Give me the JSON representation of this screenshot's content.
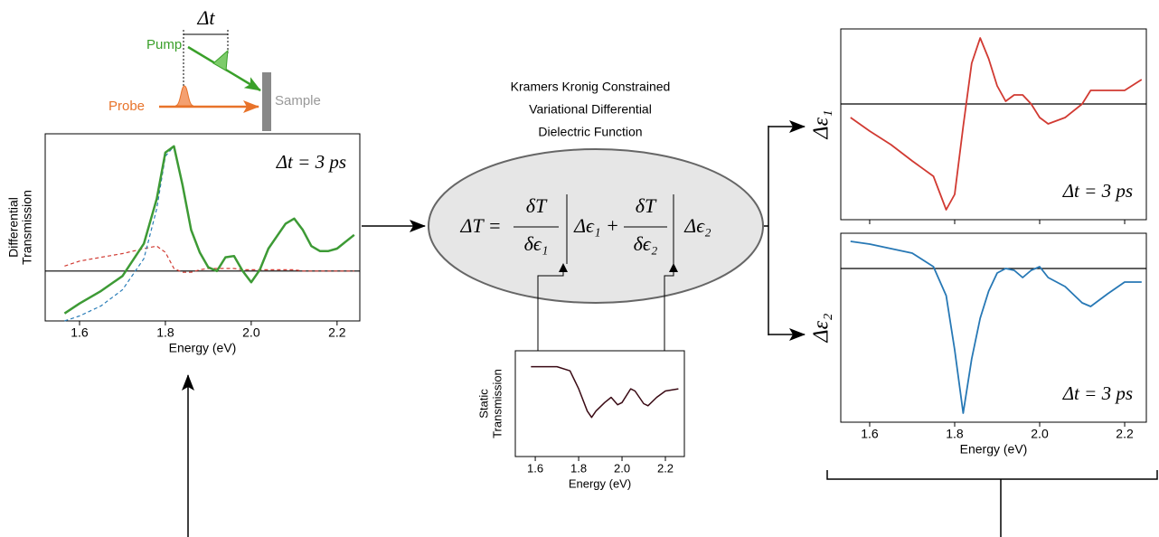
{
  "schematic": {
    "delay": "Δt",
    "pump": "Pump",
    "probe": "Probe",
    "sample": "Sample"
  },
  "method": {
    "title_lines": [
      "Kramers Kronig Constrained",
      "Variational Differential",
      "Dielectric Function"
    ],
    "equation": {
      "lhs": "ΔT =",
      "num1": "δT",
      "den1": "δϵ₁",
      "term1": "Δϵ₁ +",
      "num2": "δT",
      "den2": "δϵ₂",
      "term2": "Δϵ₂"
    }
  },
  "chart_data": [
    {
      "type": "line",
      "xlabel": "Energy (eV)",
      "ylabel": [
        "Differential",
        "Transmission"
      ],
      "annotation": "Δt = 3 ps",
      "xlim": [
        1.52,
        2.253
      ],
      "ylim": [
        -0.4,
        1.1
      ],
      "xticks": [
        1.6,
        1.8,
        {
          "value": 2,
          "label": "2.0"
        },
        2.2
      ],
      "xtick_labels": true,
      "hline": 0,
      "x": [
        1.565,
        1.6,
        1.65,
        1.7,
        1.75,
        1.78,
        1.8,
        1.82,
        1.84,
        1.86,
        1.88,
        1.9,
        1.92,
        1.94,
        1.96,
        1.98,
        2.0,
        2.02,
        2.04,
        2.06,
        2.08,
        2.1,
        2.12,
        2.14,
        2.16,
        2.18,
        2.2,
        2.24
      ],
      "series": [
        {
          "color": "#d13a32",
          "dash": true,
          "width": 1.2,
          "values": [
            0.04,
            0.08,
            0.11,
            0.14,
            0.18,
            0.2,
            0.15,
            0.02,
            -0.01,
            -0.01,
            0.01,
            0.02,
            0.02,
            0.02,
            0.02,
            0.01,
            0.01,
            0.01,
            0.01,
            0.01,
            0.01,
            0.01,
            0.0,
            0.0,
            0.0,
            0.0,
            0.0,
            0.0
          ]
        },
        {
          "color": "#2a7db8",
          "dash": true,
          "width": 1.2,
          "values": [
            -0.4,
            -0.36,
            -0.28,
            -0.15,
            0.1,
            0.5,
            0.92,
            1.0,
            0.69,
            0.33,
            0.15,
            0.03,
            0,
            0.11,
            0.12,
            0,
            -0.09,
            0.01,
            0.18,
            0.28,
            0.38,
            0.42,
            0.33,
            0.2,
            0.16,
            0.16,
            0.18,
            0.29
          ]
        },
        {
          "color": "#3d9a35",
          "dash": false,
          "width": 2.5,
          "values": [
            -0.34,
            -0.26,
            -0.16,
            -0.04,
            0.22,
            0.58,
            0.95,
            1.0,
            0.69,
            0.33,
            0.15,
            0.03,
            0,
            0.11,
            0.12,
            0,
            -0.09,
            0.01,
            0.18,
            0.28,
            0.38,
            0.42,
            0.33,
            0.2,
            0.16,
            0.16,
            0.18,
            0.29
          ]
        }
      ]
    },
    {
      "type": "line",
      "xlabel": "Energy (eV)",
      "ylabel": [
        "Static",
        "Transmission"
      ],
      "xlim": [
        1.508,
        2.2875
      ],
      "ylim": [
        0,
        1
      ],
      "xticks": [
        1.6,
        1.8,
        {
          "value": 2,
          "label": "2.0"
        },
        2.2
      ],
      "xtick_labels": true,
      "x": [
        1.58,
        1.7,
        1.76,
        1.8,
        1.84,
        1.86,
        1.88,
        1.92,
        1.95,
        1.98,
        2.0,
        2.04,
        2.06,
        2.1,
        2.12,
        2.16,
        2.2,
        2.26
      ],
      "series": [
        {
          "color": "#3a0a14",
          "dash": false,
          "width": 1.5,
          "values": [
            0.85,
            0.85,
            0.81,
            0.64,
            0.43,
            0.37,
            0.43,
            0.51,
            0.56,
            0.49,
            0.51,
            0.64,
            0.62,
            0.5,
            0.48,
            0.56,
            0.62,
            0.64
          ]
        }
      ]
    },
    {
      "type": "line",
      "ylabel": "Δε₁",
      "annotation": "Δt = 3 ps",
      "xlim": [
        1.532,
        2.251
      ],
      "ylim": [
        -1.28,
        0.83
      ],
      "xticks": [
        1.6,
        1.8,
        {
          "value": 2,
          "label": "2.0"
        },
        2.2
      ],
      "xtick_labels": false,
      "hline": 0,
      "x": [
        1.555,
        1.6,
        1.65,
        1.7,
        1.75,
        1.78,
        1.8,
        1.82,
        1.84,
        1.86,
        1.88,
        1.9,
        1.92,
        1.94,
        1.96,
        1.98,
        2.0,
        2.02,
        2.06,
        2.1,
        2.12,
        2.16,
        2.2,
        2.24
      ],
      "series": [
        {
          "color": "#d13a32",
          "dash": false,
          "width": 1.8,
          "values": [
            -0.15,
            -0.3,
            -0.45,
            -0.63,
            -0.8,
            -1.17,
            -1.0,
            -0.25,
            0.45,
            0.73,
            0.5,
            0.2,
            0.03,
            0.1,
            0.1,
            0,
            -0.15,
            -0.22,
            -0.15,
            0,
            0.15,
            0.15,
            0.15,
            0.27
          ]
        }
      ]
    },
    {
      "type": "line",
      "xlabel": "Energy (eV)",
      "ylabel": "Δε₂",
      "annotation": "Δt = 3 ps",
      "xlim": [
        1.532,
        2.251
      ],
      "ylim": [
        -1.7,
        0.39
      ],
      "xticks": [
        1.6,
        1.8,
        {
          "value": 2,
          "label": "2.0"
        },
        2.2
      ],
      "xtick_labels": true,
      "hline": 0,
      "x": [
        1.555,
        1.6,
        1.65,
        1.7,
        1.75,
        1.78,
        1.8,
        1.82,
        1.84,
        1.86,
        1.88,
        1.9,
        1.92,
        1.94,
        1.96,
        1.98,
        2.0,
        2.02,
        2.06,
        2.1,
        2.12,
        2.16,
        2.2,
        2.24
      ],
      "series": [
        {
          "color": "#2778b5",
          "dash": false,
          "width": 1.8,
          "values": [
            0.3,
            0.27,
            0.22,
            0.17,
            0.02,
            -0.3,
            -0.9,
            -1.6,
            -1.0,
            -0.55,
            -0.25,
            -0.05,
            0,
            -0.02,
            -0.1,
            -0.02,
            0.02,
            -0.1,
            -0.2,
            -0.38,
            -0.42,
            -0.28,
            -0.15,
            -0.15
          ]
        }
      ]
    }
  ]
}
